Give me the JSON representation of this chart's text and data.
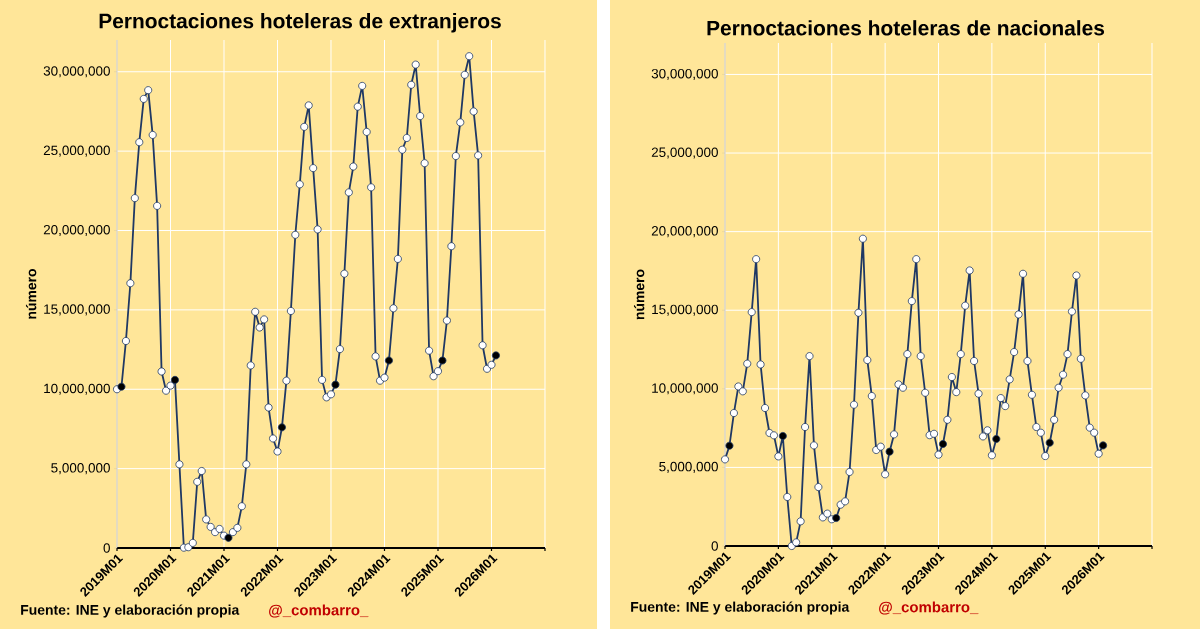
{
  "chart_data": [
    {
      "type": "line",
      "title": "Pernoctaciones hoteleras de extranjeros",
      "ylabel": "número",
      "x": [
        "2019-01",
        "2019-02",
        "2019-03",
        "2019-04",
        "2019-05",
        "2019-06",
        "2019-07",
        "2019-08",
        "2019-09",
        "2019-10",
        "2019-11",
        "2019-12",
        "2020-01",
        "2020-02",
        "2020-03",
        "2020-04",
        "2020-05",
        "2020-06",
        "2020-07",
        "2020-08",
        "2020-09",
        "2020-10",
        "2020-11",
        "2020-12",
        "2021-01",
        "2021-02",
        "2021-03",
        "2021-04",
        "2021-05",
        "2021-06",
        "2021-07",
        "2021-08",
        "2021-09",
        "2021-10",
        "2021-11",
        "2021-12",
        "2022-01",
        "2022-02",
        "2022-03",
        "2022-04",
        "2022-05",
        "2022-06",
        "2022-07",
        "2022-08",
        "2022-09",
        "2022-10",
        "2022-11",
        "2022-12",
        "2023-01",
        "2023-02",
        "2023-03",
        "2023-04",
        "2023-05",
        "2023-06",
        "2023-07",
        "2023-08",
        "2023-09",
        "2023-10",
        "2023-11",
        "2023-12",
        "2024-01",
        "2024-02",
        "2024-03",
        "2024-04",
        "2024-05",
        "2024-06",
        "2024-07",
        "2024-08",
        "2024-09",
        "2024-10",
        "2024-11",
        "2024-12",
        "2025-01",
        "2025-02",
        "2025-03",
        "2025-04",
        "2025-05",
        "2025-06",
        "2025-07",
        "2025-08",
        "2025-09",
        "2025-10",
        "2025-11",
        "2025-12",
        "2026-01",
        "2026-02"
      ],
      "series": [
        {
          "color": "#1f3864",
          "colors": [
            "#ffffff",
            "#000000",
            "#ffffff",
            "#ffffff",
            "#ffffff",
            "#ffffff",
            "#ffffff",
            "#ffffff",
            "#ffffff",
            "#ffffff",
            "#ffffff",
            "#ffffff",
            "#ffffff",
            "#000000",
            "#ffffff",
            "#ffffff",
            "#ffffff",
            "#ffffff",
            "#ffffff",
            "#ffffff",
            "#ffffff",
            "#ffffff",
            "#ffffff",
            "#ffffff",
            "#ffffff",
            "#000000",
            "#ffffff",
            "#ffffff",
            "#ffffff",
            "#ffffff",
            "#ffffff",
            "#ffffff",
            "#ffffff",
            "#ffffff",
            "#ffffff",
            "#ffffff",
            "#ffffff",
            "#000000",
            "#ffffff",
            "#ffffff",
            "#ffffff",
            "#ffffff",
            "#ffffff",
            "#ffffff",
            "#ffffff",
            "#ffffff",
            "#ffffff",
            "#ffffff",
            "#ffffff",
            "#000000",
            "#ffffff",
            "#ffffff",
            "#ffffff",
            "#ffffff",
            "#ffffff",
            "#ffffff",
            "#ffffff",
            "#ffffff",
            "#ffffff",
            "#ffffff",
            "#ffffff",
            "#000000",
            "#ffffff",
            "#ffffff",
            "#ffffff",
            "#ffffff",
            "#ffffff",
            "#ffffff",
            "#ffffff",
            "#ffffff",
            "#ffffff",
            "#ffffff",
            "#ffffff",
            "#000000",
            "#ffffff",
            "#ffffff",
            "#ffffff",
            "#ffffff",
            "#ffffff",
            "#ffffff",
            "#ffffff",
            "#ffffff",
            "#ffffff",
            "#ffffff",
            "#ffffff",
            "#000000"
          ],
          "values": [
            10000000,
            10160000,
            13040000,
            16680000,
            22040000,
            25560000,
            28290000,
            28840000,
            26020000,
            21550000,
            11120000,
            9910000,
            10230000,
            10590000,
            5270000,
            20000,
            50000,
            320000,
            4170000,
            4850000,
            1800000,
            1330000,
            1000000,
            1200000,
            780000,
            640000,
            1000000,
            1270000,
            2630000,
            5270000,
            11500000,
            14880000,
            13890000,
            14400000,
            8850000,
            6900000,
            6080000,
            7600000,
            10540000,
            14930000,
            19730000,
            22910000,
            26530000,
            27880000,
            23930000,
            20070000,
            10590000,
            9490000,
            9680000,
            10290000,
            12530000,
            17280000,
            22400000,
            24030000,
            27800000,
            29110000,
            26210000,
            22720000,
            12070000,
            10540000,
            10730000,
            11810000,
            15100000,
            18210000,
            25090000,
            25830000,
            29180000,
            30450000,
            27210000,
            24240000,
            12430000,
            10820000,
            11140000,
            11810000,
            14330000,
            19010000,
            24690000,
            26810000,
            29810000,
            30980000,
            27500000,
            24730000,
            12770000,
            11290000,
            11540000,
            12130000
          ]
        }
      ],
      "xlim": [
        "2019-01",
        "2027-01"
      ],
      "xticks": [
        {
          "value": "2019-01",
          "label": "2019M01"
        },
        {
          "value": "2020-01",
          "label": "2020M01"
        },
        {
          "value": "2021-01",
          "label": "2021M01"
        },
        {
          "value": "2022-01",
          "label": "2022M01"
        },
        {
          "value": "2023-01",
          "label": "2023M01"
        },
        {
          "value": "2024-01",
          "label": "2024M01"
        },
        {
          "value": "2025-01",
          "label": "2025M01"
        },
        {
          "value": "2026-01",
          "label": "2026M01"
        },
        {
          "value": "2027-01",
          "label": null
        }
      ],
      "ylim": [
        0,
        32000000
      ],
      "yticks": [
        0,
        {
          "value": 5000000,
          "label": "5,000,000"
        },
        {
          "value": 10000000,
          "label": "10,000,000"
        },
        {
          "value": 15000000,
          "label": "15,000,000"
        },
        {
          "value": 20000000,
          "label": "20,000,000"
        },
        {
          "value": 25000000,
          "label": "25,000,000"
        },
        {
          "value": 30000000,
          "label": "30,000,000"
        }
      ],
      "grid": true,
      "marker": "circle",
      "annotations": [
        "Fuente: INE  y elaboración propia",
        "@_combarro_"
      ]
    },
    {
      "type": "line",
      "title": "Pernoctaciones hoteleras de nacionales",
      "ylabel": "número",
      "x": [
        "2019-01",
        "2019-02",
        "2019-03",
        "2019-04",
        "2019-05",
        "2019-06",
        "2019-07",
        "2019-08",
        "2019-09",
        "2019-10",
        "2019-11",
        "2019-12",
        "2020-01",
        "2020-02",
        "2020-03",
        "2020-04",
        "2020-05",
        "2020-06",
        "2020-07",
        "2020-08",
        "2020-09",
        "2020-10",
        "2020-11",
        "2020-12",
        "2021-01",
        "2021-02",
        "2021-03",
        "2021-04",
        "2021-05",
        "2021-06",
        "2021-07",
        "2021-08",
        "2021-09",
        "2021-10",
        "2021-11",
        "2021-12",
        "2022-01",
        "2022-02",
        "2022-03",
        "2022-04",
        "2022-05",
        "2022-06",
        "2022-07",
        "2022-08",
        "2022-09",
        "2022-10",
        "2022-11",
        "2022-12",
        "2023-01",
        "2023-02",
        "2023-03",
        "2023-04",
        "2023-05",
        "2023-06",
        "2023-07",
        "2023-08",
        "2023-09",
        "2023-10",
        "2023-11",
        "2023-12",
        "2024-01",
        "2024-02",
        "2024-03",
        "2024-04",
        "2024-05",
        "2024-06",
        "2024-07",
        "2024-08",
        "2024-09",
        "2024-10",
        "2024-11",
        "2024-12",
        "2025-01",
        "2025-02",
        "2025-03",
        "2025-04",
        "2025-05",
        "2025-06",
        "2025-07",
        "2025-08",
        "2025-09",
        "2025-10",
        "2025-11",
        "2025-12",
        "2026-01",
        "2026-02"
      ],
      "series": [
        {
          "color": "#1f3864",
          "colors": [
            "#ffffff",
            "#000000",
            "#ffffff",
            "#ffffff",
            "#ffffff",
            "#ffffff",
            "#ffffff",
            "#ffffff",
            "#ffffff",
            "#ffffff",
            "#ffffff",
            "#ffffff",
            "#ffffff",
            "#000000",
            "#ffffff",
            "#ffffff",
            "#ffffff",
            "#ffffff",
            "#ffffff",
            "#ffffff",
            "#ffffff",
            "#ffffff",
            "#ffffff",
            "#ffffff",
            "#ffffff",
            "#000000",
            "#ffffff",
            "#ffffff",
            "#ffffff",
            "#ffffff",
            "#ffffff",
            "#ffffff",
            "#ffffff",
            "#ffffff",
            "#ffffff",
            "#ffffff",
            "#ffffff",
            "#000000",
            "#ffffff",
            "#ffffff",
            "#ffffff",
            "#ffffff",
            "#ffffff",
            "#ffffff",
            "#ffffff",
            "#ffffff",
            "#ffffff",
            "#ffffff",
            "#ffffff",
            "#000000",
            "#ffffff",
            "#ffffff",
            "#ffffff",
            "#ffffff",
            "#ffffff",
            "#ffffff",
            "#ffffff",
            "#ffffff",
            "#ffffff",
            "#ffffff",
            "#ffffff",
            "#000000",
            "#ffffff",
            "#ffffff",
            "#ffffff",
            "#ffffff",
            "#ffffff",
            "#ffffff",
            "#ffffff",
            "#ffffff",
            "#ffffff",
            "#ffffff",
            "#ffffff",
            "#000000",
            "#ffffff",
            "#ffffff",
            "#ffffff",
            "#ffffff",
            "#ffffff",
            "#ffffff",
            "#ffffff",
            "#ffffff",
            "#ffffff",
            "#ffffff",
            "#ffffff",
            "#000000"
          ],
          "values": [
            5510000,
            6380000,
            8460000,
            10150000,
            9840000,
            11600000,
            14880000,
            18250000,
            11550000,
            8780000,
            7190000,
            7040000,
            5700000,
            7000000,
            3120000,
            0,
            230000,
            1570000,
            7570000,
            12080000,
            6400000,
            3750000,
            1820000,
            2060000,
            1700000,
            1780000,
            2630000,
            2840000,
            4710000,
            8990000,
            14840000,
            19550000,
            11830000,
            9540000,
            6110000,
            6320000,
            4560000,
            6000000,
            7100000,
            10280000,
            10070000,
            12210000,
            15580000,
            18250000,
            12080000,
            9750000,
            7050000,
            7140000,
            5810000,
            6490000,
            8030000,
            10750000,
            9790000,
            12210000,
            15290000,
            17530000,
            11770000,
            9690000,
            6970000,
            7360000,
            5770000,
            6810000,
            9410000,
            8900000,
            10600000,
            12340000,
            14730000,
            17320000,
            11770000,
            9620000,
            7570000,
            7210000,
            5720000,
            6570000,
            8030000,
            10070000,
            10900000,
            12210000,
            14920000,
            17210000,
            11910000,
            9580000,
            7530000,
            7210000,
            5870000,
            6400000
          ]
        }
      ],
      "xlim": [
        "2019-01",
        "2027-01"
      ],
      "xticks": [
        {
          "value": "2019-01",
          "label": "2019M01"
        },
        {
          "value": "2020-01",
          "label": "2020M01"
        },
        {
          "value": "2021-01",
          "label": "2021M01"
        },
        {
          "value": "2022-01",
          "label": "2022M01"
        },
        {
          "value": "2023-01",
          "label": "2023M01"
        },
        {
          "value": "2024-01",
          "label": "2024M01"
        },
        {
          "value": "2025-01",
          "label": "2025M01"
        },
        {
          "value": "2026-01",
          "label": "2026M01"
        },
        {
          "value": "2027-01",
          "label": null
        }
      ],
      "ylim": [
        0,
        32000000
      ],
      "yticks": [
        0,
        {
          "value": 5000000,
          "label": "5,000,000"
        },
        {
          "value": 10000000,
          "label": "10,000,000"
        },
        {
          "value": 15000000,
          "label": "15,000,000"
        },
        {
          "value": 20000000,
          "label": "20,000,000"
        },
        {
          "value": 25000000,
          "label": "25,000,000"
        },
        {
          "value": 30000000,
          "label": "30,000,000"
        }
      ],
      "grid": true,
      "marker": "circle",
      "annotations": [
        "Fuente: INE  y elaboración propia",
        "@_combarro_"
      ]
    }
  ]
}
